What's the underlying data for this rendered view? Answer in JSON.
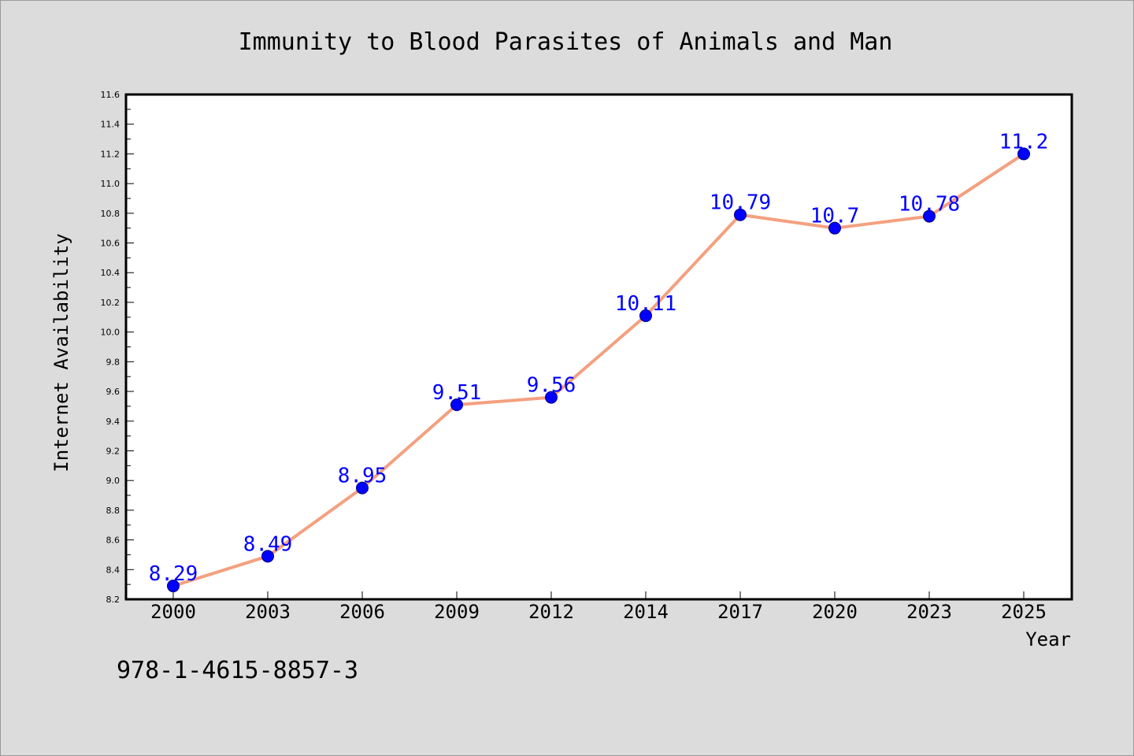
{
  "chart_data": {
    "type": "line",
    "title": "Immunity to Blood Parasites of Animals and Man",
    "xlabel": "Year",
    "ylabel": "Internet Availability",
    "categories": [
      "2000",
      "2003",
      "2006",
      "2009",
      "2012",
      "2014",
      "2017",
      "2020",
      "2023",
      "2025"
    ],
    "values": [
      8.29,
      8.49,
      8.95,
      9.51,
      9.56,
      10.11,
      10.79,
      10.7,
      10.78,
      11.2
    ],
    "data_labels": [
      "8.29",
      "8.49",
      "8.95",
      "9.51",
      "9.56",
      "10.11",
      "10.79",
      "10.7",
      "10.78",
      "11.2"
    ],
    "ylim": [
      8.2,
      11.6
    ],
    "y_ticks": [
      "8.2",
      "8.4",
      "8.6",
      "8.8",
      "9.0",
      "9.2",
      "9.4",
      "9.6",
      "9.8",
      "10.0",
      "10.2",
      "10.4",
      "10.6",
      "10.8",
      "11.0",
      "11.2",
      "11.4",
      "11.6"
    ],
    "grid": false,
    "colors": {
      "line": "#f4a07f",
      "marker": "#0000ff",
      "marker_edge": "#00007a",
      "data_label": "#0000ff",
      "plot_background": "#ffffff",
      "figure_background": "#dcdcdc"
    }
  },
  "footer": {
    "isbn": "978-1-4615-8857-3"
  }
}
